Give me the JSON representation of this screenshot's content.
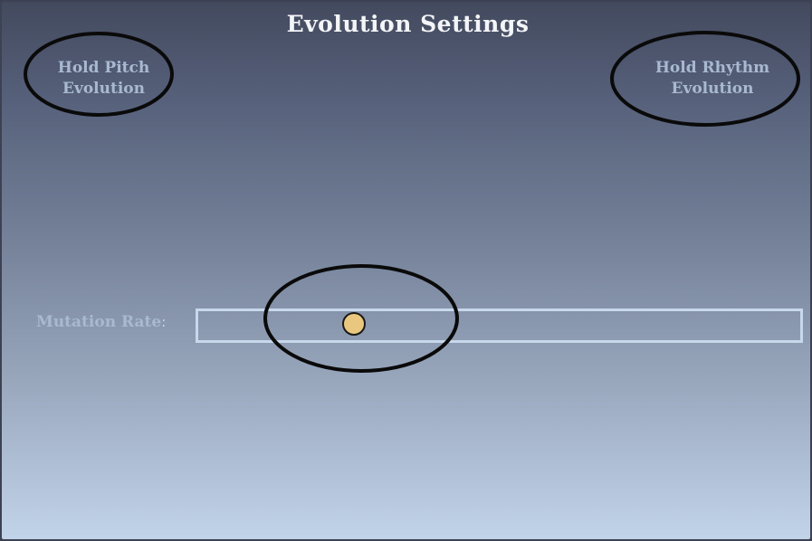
{
  "window": {
    "title": "Evolution Settings"
  },
  "controls": {
    "hold_pitch": {
      "line1": "Hold Pitch",
      "line2": "Evolution"
    },
    "hold_rhythm": {
      "line1": "Hold Rhythm",
      "line2": "Evolution"
    },
    "mutation_rate": {
      "label": "Mutation Rate",
      "colon": ":",
      "value_fraction": 0.26
    }
  },
  "colors": {
    "thumb": "#e9c77f",
    "track_border": "#c8d8ec",
    "label_text": "#a9b9d0",
    "title_text": "#f4f5f8"
  }
}
